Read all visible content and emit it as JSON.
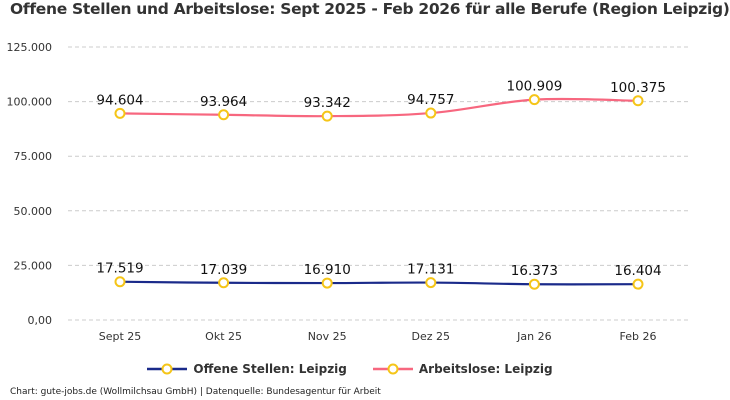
{
  "chart_data": {
    "type": "line",
    "title": "Offene Stellen und Arbeitslose: Sept 2025 - Feb 2026 für alle Berufe (Region Leipzig)",
    "categories": [
      "Sept 25",
      "Okt 25",
      "Nov 25",
      "Dez 25",
      "Jan 26",
      "Feb 26"
    ],
    "yticks": [
      "0,00",
      "25.000",
      "50.000",
      "75.000",
      "100.000",
      "125.000"
    ],
    "ytick_values": [
      0,
      25000,
      50000,
      75000,
      100000,
      125000
    ],
    "ylim": [
      0,
      125000
    ],
    "grid": true,
    "legend_position": "bottom",
    "series": [
      {
        "name": "Offene Stellen: Leipzig",
        "color": "#1a2a8a",
        "marker_color": "#f5c518",
        "values": [
          17519,
          17039,
          16910,
          17131,
          16373,
          16404
        ],
        "labels": [
          "17.519",
          "17.039",
          "16.910",
          "17.131",
          "16.373",
          "16.404"
        ]
      },
      {
        "name": "Arbeitslose: Leipzig",
        "color": "#f7677f",
        "marker_color": "#f5c518",
        "values": [
          94604,
          93964,
          93342,
          94757,
          100909,
          100375
        ],
        "labels": [
          "94.604",
          "93.964",
          "93.342",
          "94.757",
          "100.909",
          "100.375"
        ]
      }
    ]
  },
  "footer": "Chart: gute-jobs.de (Wollmilchsau GmbH) | Datenquelle: Bundesagentur für Arbeit"
}
